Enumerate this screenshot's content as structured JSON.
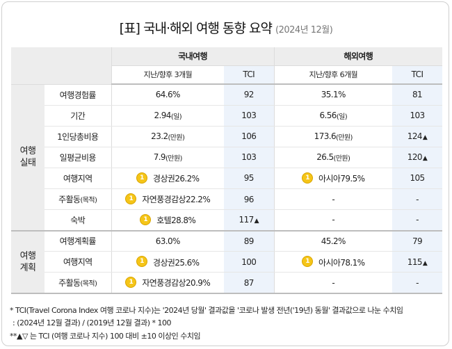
{
  "title": "[표] 국내·해외 여행 동향 요약",
  "subtitle": "(2024년 12월)",
  "header": {
    "domestic": "국내여행",
    "overseas": "해외여행",
    "domestic_period": "지난/향후 3개월",
    "overseas_period": "지난/향후 6개월",
    "tci": "TCI"
  },
  "sections": [
    {
      "label": "여행\n실태",
      "rows": [
        {
          "label": "여행경험률",
          "label_small": "",
          "dom_medal": false,
          "dom_value": "64.6%",
          "dom_unit": "",
          "dom_tci": "92",
          "dom_up": "",
          "ovs_medal": false,
          "ovs_value": "35.1%",
          "ovs_unit": "",
          "ovs_tci": "81",
          "ovs_up": ""
        },
        {
          "label": "기간",
          "label_small": "",
          "dom_medal": false,
          "dom_value": "2.94",
          "dom_unit": "(일)",
          "dom_tci": "103",
          "dom_up": "",
          "ovs_medal": false,
          "ovs_value": "6.56",
          "ovs_unit": "(일)",
          "ovs_tci": "103",
          "ovs_up": ""
        },
        {
          "label": "1인당총비용",
          "label_small": "",
          "dom_medal": false,
          "dom_value": "23.2",
          "dom_unit": "(만원)",
          "dom_tci": "106",
          "dom_up": "",
          "ovs_medal": false,
          "ovs_value": "173.6",
          "ovs_unit": "(만원)",
          "ovs_tci": "124",
          "ovs_up": "▲"
        },
        {
          "label": "일평균비용",
          "label_small": "",
          "dom_medal": false,
          "dom_value": "7.9",
          "dom_unit": "(만원)",
          "dom_tci": "103",
          "dom_up": "",
          "ovs_medal": false,
          "ovs_value": "26.5",
          "ovs_unit": "(만원)",
          "ovs_tci": "120",
          "ovs_up": "▲"
        },
        {
          "label": "여행지역",
          "label_small": "",
          "dom_medal": true,
          "dom_value": "경상권26.2%",
          "dom_unit": "",
          "dom_tci": "95",
          "dom_up": "",
          "ovs_medal": true,
          "ovs_value": "아시아79.5%",
          "ovs_unit": "",
          "ovs_tci": "105",
          "ovs_up": ""
        },
        {
          "label": "주활동",
          "label_small": "(목적)",
          "dom_medal": true,
          "dom_value": "자연풍경감상22.2%",
          "dom_unit": "",
          "dom_tci": "96",
          "dom_up": "",
          "ovs_medal": false,
          "ovs_value": "-",
          "ovs_unit": "",
          "ovs_tci": "-",
          "ovs_up": ""
        },
        {
          "label": "숙박",
          "label_small": "",
          "dom_medal": true,
          "dom_value": "호텔28.8%",
          "dom_unit": "",
          "dom_tci": "117",
          "dom_up": "▲",
          "ovs_medal": false,
          "ovs_value": "-",
          "ovs_unit": "",
          "ovs_tci": "-",
          "ovs_up": ""
        }
      ]
    },
    {
      "label": "여행\n계획",
      "rows": [
        {
          "label": "여행계획률",
          "label_small": "",
          "dom_medal": false,
          "dom_value": "63.0%",
          "dom_unit": "",
          "dom_tci": "89",
          "dom_up": "",
          "ovs_medal": false,
          "ovs_value": "45.2%",
          "ovs_unit": "",
          "ovs_tci": "79",
          "ovs_up": ""
        },
        {
          "label": "여행지역",
          "label_small": "",
          "dom_medal": true,
          "dom_value": "경상권25.6%",
          "dom_unit": "",
          "dom_tci": "100",
          "dom_up": "",
          "ovs_medal": true,
          "ovs_value": "아시아78.1%",
          "ovs_unit": "",
          "ovs_tci": "115",
          "ovs_up": "▲"
        },
        {
          "label": "주활동",
          "label_small": "(목적)",
          "dom_medal": true,
          "dom_value": "자연풍경감상20.9%",
          "dom_unit": "",
          "dom_tci": "87",
          "dom_up": "",
          "ovs_medal": false,
          "ovs_value": "-",
          "ovs_unit": "",
          "ovs_tci": "-",
          "ovs_up": ""
        }
      ]
    }
  ],
  "medal_text": "1",
  "footnotes": {
    "line1": "* TCI(Travel Corona Index 여행 코로나 지수)는 '2024년 당월' 결과값을 '코로나 발생 전년('19년) 동월' 결과값으로 나눈 수치임",
    "line2": ": (2024년 12월 결과) / (2019년 12월 결과) * 100",
    "line3": "**▲▽ 는 TCI (여행 코로나 지수) 100 대비 ±10 이상인 수치임"
  },
  "colors": {
    "header_bg": "#ededed",
    "tci_bg": "#edf3fb",
    "medal": "#f5c518"
  }
}
